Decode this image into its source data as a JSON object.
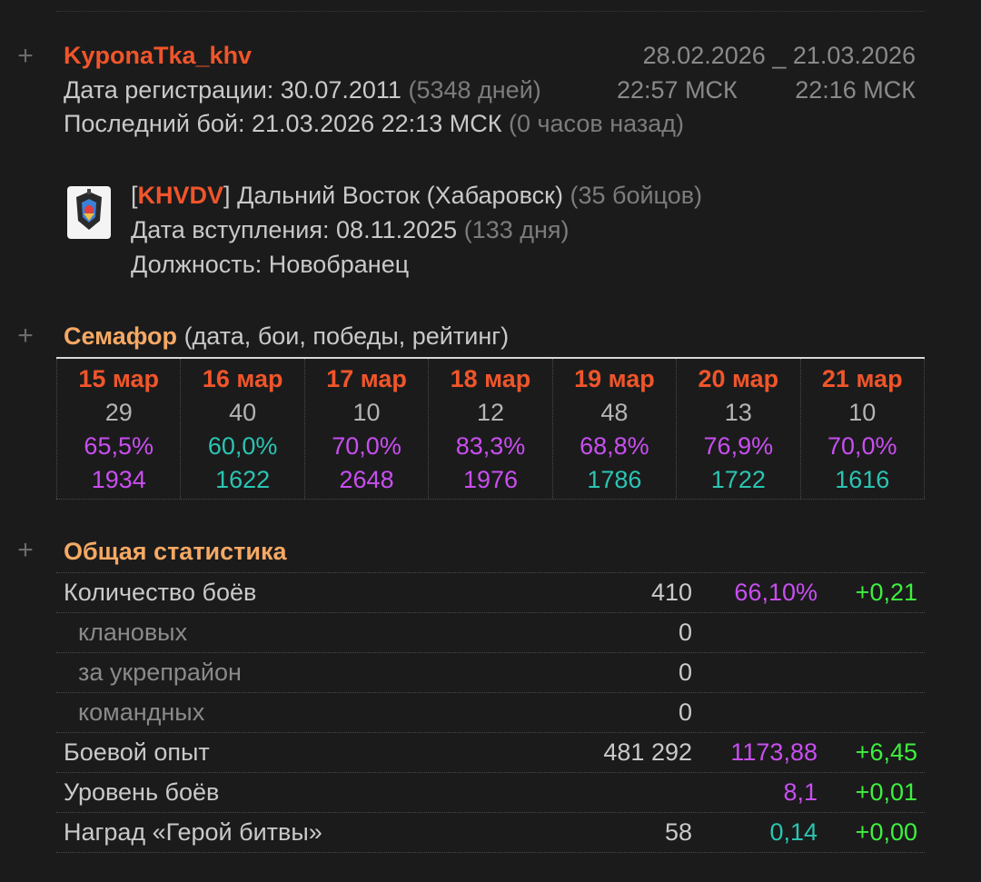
{
  "player": {
    "name": "KyponaTka_khv",
    "reg_label": "Дата регистрации:",
    "reg_date": "30.07.2011",
    "reg_days": "(5348 дней)",
    "last_battle_label": "Последний бой:",
    "last_battle": "21.03.2026 22:13 МСК",
    "last_battle_ago": "(0 часов назад)",
    "period_from_date": "28.02.2026",
    "period_sep": "_",
    "period_to_date": "21.03.2026",
    "period_from_time": "22:57 МСК",
    "period_to_time": "22:16 МСК"
  },
  "clan": {
    "bracket_open": "[",
    "tag": "KHVDV",
    "bracket_close": "]",
    "name": "Дальний Восток (Хабаровск)",
    "members": "(35 бойцов)",
    "join_label": "Дата вступления:",
    "join_date": "08.11.2025",
    "join_days": "(133 дня)",
    "role_label": "Должность:",
    "role": "Новобранец"
  },
  "semafor": {
    "title": "Семафор",
    "subtitle": "(дата, бои, победы, рейтинг)",
    "days": [
      {
        "date": "15 мар",
        "battles": "29",
        "winrate": "65,5%",
        "wr_color": "purple",
        "rating": "1934",
        "rt_color": "purple"
      },
      {
        "date": "16 мар",
        "battles": "40",
        "winrate": "60,0%",
        "wr_color": "teal",
        "rating": "1622",
        "rt_color": "teal"
      },
      {
        "date": "17 мар",
        "battles": "10",
        "winrate": "70,0%",
        "wr_color": "purple",
        "rating": "2648",
        "rt_color": "purple"
      },
      {
        "date": "18 мар",
        "battles": "12",
        "winrate": "83,3%",
        "wr_color": "purple",
        "rating": "1976",
        "rt_color": "purple"
      },
      {
        "date": "19 мар",
        "battles": "48",
        "winrate": "68,8%",
        "wr_color": "purple",
        "rating": "1786",
        "rt_color": "teal"
      },
      {
        "date": "20 мар",
        "battles": "13",
        "winrate": "76,9%",
        "wr_color": "purple",
        "rating": "1722",
        "rt_color": "teal"
      },
      {
        "date": "21 мар",
        "battles": "10",
        "winrate": "70,0%",
        "wr_color": "purple",
        "rating": "1616",
        "rt_color": "teal"
      }
    ]
  },
  "general": {
    "title": "Общая статистика",
    "rows": [
      {
        "label": "Количество боёв",
        "sub": false,
        "v1": "410",
        "v2": "66,10%",
        "v2_color": "purple",
        "v3": "+0,21"
      },
      {
        "label": "клановых",
        "sub": true,
        "v1": "0",
        "v2": "",
        "v2_color": "",
        "v3": ""
      },
      {
        "label": "за укрепрайон",
        "sub": true,
        "v1": "0",
        "v2": "",
        "v2_color": "",
        "v3": ""
      },
      {
        "label": "командных",
        "sub": true,
        "v1": "0",
        "v2": "",
        "v2_color": "",
        "v3": ""
      },
      {
        "label": "Боевой опыт",
        "sub": false,
        "v1": "481 292",
        "v2": "1173,88",
        "v2_color": "purple",
        "v3": "+6,45"
      },
      {
        "label": "Уровень боёв",
        "sub": false,
        "v1": "",
        "v2": "8,1",
        "v2_color": "purple",
        "v3": "+0,01"
      },
      {
        "label": "Наград «Герой битвы»",
        "sub": false,
        "v1": "58",
        "v2": "0,14",
        "v2_color": "teal",
        "v3": "+0,00"
      }
    ]
  },
  "icons": {
    "expand": "plus-icon",
    "clan_emblem": "clan-emblem-icon"
  },
  "colors": {
    "background": "#1b1b1c",
    "accent_orange": "#f0552a",
    "section_orange": "#f5a964",
    "purple": "#c94ef0",
    "teal": "#2bc4b2",
    "green": "#3ef03e"
  }
}
